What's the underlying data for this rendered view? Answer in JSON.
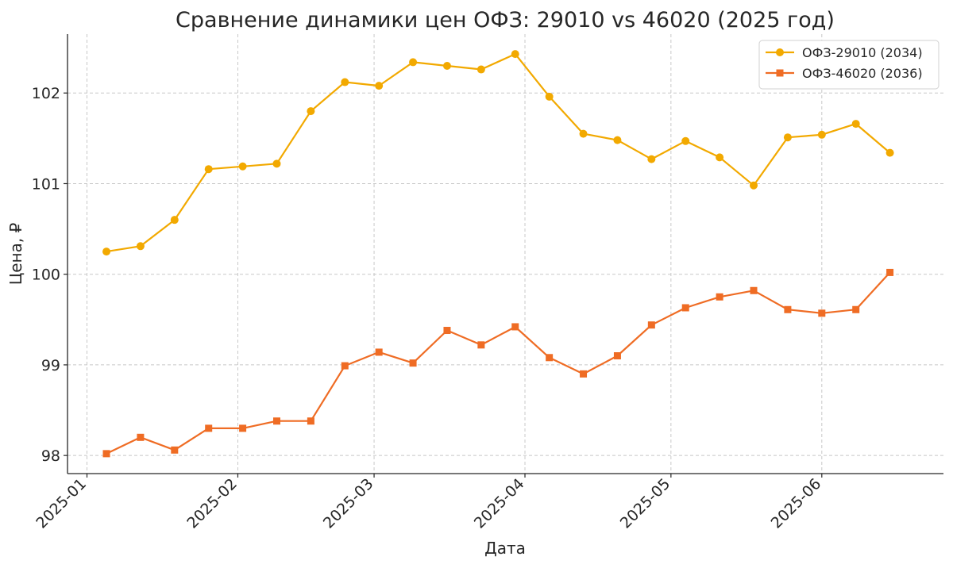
{
  "chart_data": {
    "type": "line",
    "title": "Сравнение динамики цен ОФЗ: 29010 vs 46020 (2025 год)",
    "xlabel": "Дата",
    "ylabel": "Цена, ₽",
    "x_ticks": [
      "2025-01",
      "2025-02",
      "2025-03",
      "2025-04",
      "2025-05",
      "2025-06"
    ],
    "y_ticks": [
      98,
      99,
      100,
      101,
      102
    ],
    "ylim": [
      97.8,
      102.65
    ],
    "xlim": [
      "2024-12-28",
      "2025-06-26"
    ],
    "grid": true,
    "legend_position": "top-right",
    "x": [
      "2025-01-05",
      "2025-01-12",
      "2025-01-19",
      "2025-01-26",
      "2025-02-02",
      "2025-02-09",
      "2025-02-16",
      "2025-02-23",
      "2025-03-02",
      "2025-03-09",
      "2025-03-16",
      "2025-03-23",
      "2025-03-30",
      "2025-04-06",
      "2025-04-13",
      "2025-04-20",
      "2025-04-27",
      "2025-05-04",
      "2025-05-11",
      "2025-05-18",
      "2025-05-25",
      "2025-06-01",
      "2025-06-08",
      "2025-06-15"
    ],
    "series": [
      {
        "name": "ОФЗ-29010 (2034)",
        "color": "#F2A900",
        "marker": "circle",
        "values": [
          100.25,
          100.31,
          100.6,
          101.16,
          101.19,
          101.22,
          101.8,
          102.12,
          102.08,
          102.34,
          102.3,
          102.26,
          102.43,
          101.96,
          101.55,
          101.48,
          101.27,
          101.47,
          101.29,
          100.98,
          101.51,
          101.54,
          101.66,
          101.34
        ]
      },
      {
        "name": "ОФЗ-46020 (2036)",
        "color": "#EF6C24",
        "marker": "square",
        "values": [
          98.02,
          98.2,
          98.06,
          98.3,
          98.3,
          98.38,
          98.38,
          98.99,
          99.14,
          99.02,
          99.38,
          99.22,
          99.42,
          99.08,
          98.9,
          99.1,
          99.44,
          99.63,
          99.75,
          99.82,
          99.61,
          99.57,
          99.61,
          100.02
        ]
      }
    ]
  }
}
